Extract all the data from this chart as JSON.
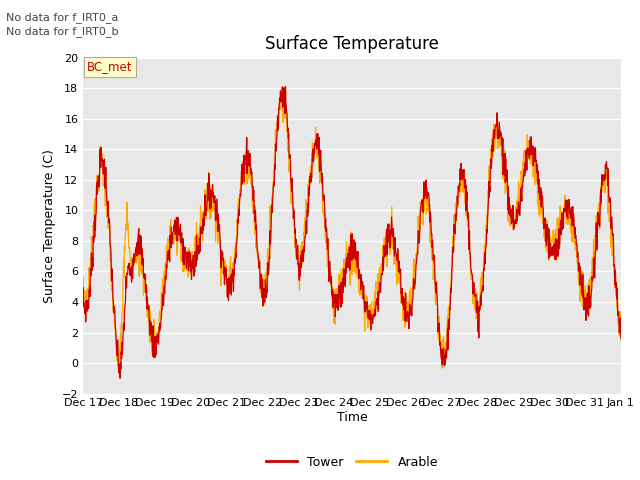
{
  "title": "Surface Temperature",
  "ylabel": "Surface Temperature (C)",
  "xlabel": "Time",
  "annotations": [
    "No data for f_IRT0_a",
    "No data for f_IRT0_b"
  ],
  "legend_label": "BC_met",
  "legend_bg": "#ffffcc",
  "legend_border": "#999999",
  "line1_label": "Tower",
  "line1_color": "#cc0000",
  "line2_label": "Arable",
  "line2_color": "#ffaa00",
  "ylim": [
    -2,
    20
  ],
  "yticks": [
    -2,
    0,
    2,
    4,
    6,
    8,
    10,
    12,
    14,
    16,
    18,
    20
  ],
  "fig_bg": "#ffffff",
  "plot_bg": "#e8e8e8",
  "grid_color": "#ffffff",
  "xtick_labels": [
    "Dec 17",
    "Dec 18",
    "Dec 19",
    "Dec 20",
    "Dec 21",
    "Dec 22",
    "Dec 23",
    "Dec 24",
    "Dec 25",
    "Dec 26",
    "Dec 27",
    "Dec 28",
    "Dec 29",
    "Dec 30",
    "Dec 31",
    "Jan 1"
  ],
  "title_fontsize": 12,
  "label_fontsize": 9,
  "tick_fontsize": 8,
  "annotation_fontsize": 8
}
